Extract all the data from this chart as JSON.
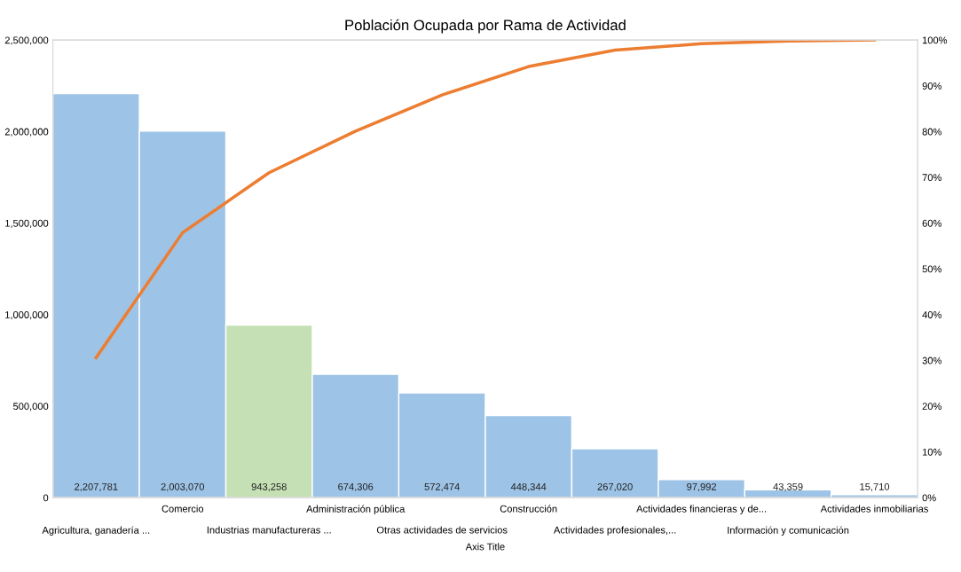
{
  "chart_data": {
    "type": "bar",
    "title": "Población Ocupada por Rama de Actividad",
    "xlabel": "Axis Title",
    "categories": [
      "Agricultura, ganadería ...",
      "Comercio",
      "Industrias manufactureras ...",
      "Administración pública",
      "Otras actividades de servicios",
      "Construcción",
      "Actividades profesionales,...",
      "Actividades financieras y de...",
      "Información y comunicación",
      "Actividades inmobiliarias"
    ],
    "series": [
      {
        "colors": [
          "#9dc3e6",
          "#9dc3e6",
          "#c5e0b4",
          "#9dc3e6",
          "#9dc3e6",
          "#9dc3e6",
          "#9dc3e6",
          "#9dc3e6",
          "#9dc3e6",
          "#9dc3e6"
        ],
        "values": [
          2207781,
          2003070,
          943258,
          674306,
          572474,
          448344,
          267020,
          97992,
          43359,
          15710
        ],
        "value_labels": [
          "2,207,781",
          "2,003,070",
          "943,258",
          "674,306",
          "572,474",
          "448,344",
          "267,020",
          "97,992",
          "43,359",
          "15,710"
        ]
      },
      {
        "type": "line",
        "axis": "y2",
        "color": "#ed7d31",
        "values": [
          30.6,
          57.9,
          71.0,
          80.1,
          88.0,
          94.2,
          97.8,
          99.2,
          99.8,
          100.0
        ]
      }
    ],
    "ylim": [
      0,
      2500000
    ],
    "yticks": [
      {
        "value": 0,
        "label": "0"
      },
      {
        "value": 500000,
        "label": "500,000"
      },
      {
        "value": 1000000,
        "label": "1,000,000"
      },
      {
        "value": 1500000,
        "label": "1,500,000"
      },
      {
        "value": 2000000,
        "label": "2,000,000"
      },
      {
        "value": 2500000,
        "label": "2,500,000"
      }
    ],
    "y2lim": [
      0,
      100
    ],
    "y2ticks": [
      {
        "value": 0,
        "label": "0%"
      },
      {
        "value": 10,
        "label": "10%"
      },
      {
        "value": 20,
        "label": "20%"
      },
      {
        "value": 30,
        "label": "30%"
      },
      {
        "value": 40,
        "label": "40%"
      },
      {
        "value": 50,
        "label": "50%"
      },
      {
        "value": 60,
        "label": "60%"
      },
      {
        "value": 70,
        "label": "70%"
      },
      {
        "value": 80,
        "label": "80%"
      },
      {
        "value": 90,
        "label": "90%"
      },
      {
        "value": 100,
        "label": "100%"
      }
    ],
    "grid": false,
    "legend": false
  }
}
